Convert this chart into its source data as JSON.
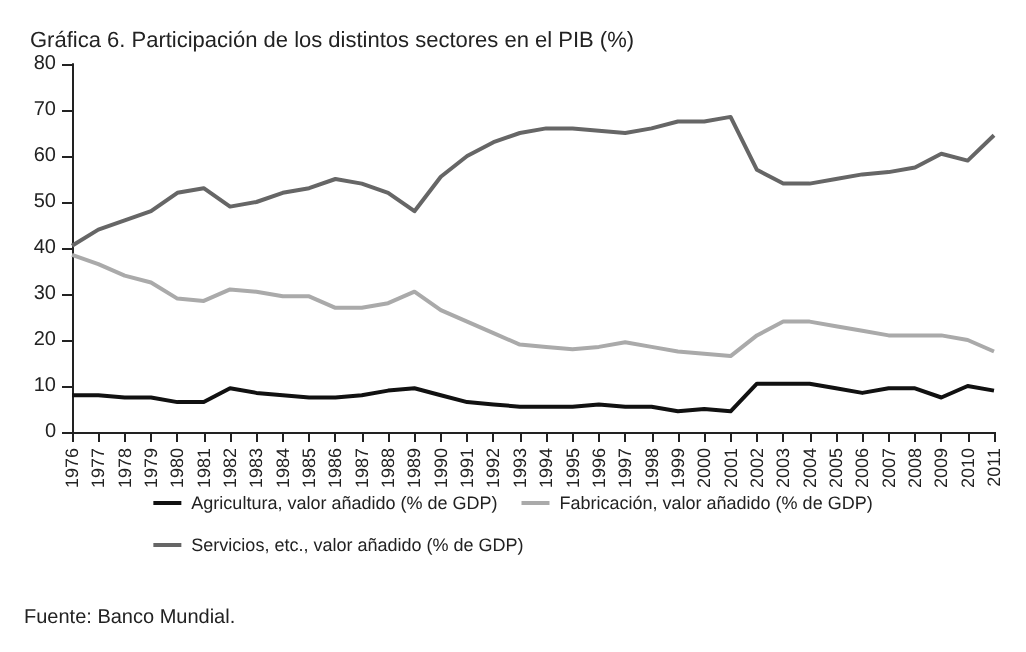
{
  "chart_data": {
    "type": "line",
    "title": "Gráfica 6. Participación de los distintos sectores en el PIB (%)",
    "categories": [
      "1976",
      "1977",
      "1978",
      "1979",
      "1980",
      "1981",
      "1982",
      "1983",
      "1984",
      "1985",
      "1986",
      "1987",
      "1988",
      "1989",
      "1990",
      "1991",
      "1992",
      "1993",
      "1994",
      "1995",
      "1996",
      "1997",
      "1998",
      "1999",
      "2000",
      "2001",
      "2002",
      "2003",
      "2004",
      "2005",
      "2006",
      "2007",
      "2008",
      "2009",
      "2010",
      "2011"
    ],
    "series": [
      {
        "name": "Agricultura, valor añadido (% de GDP)",
        "color": "#111111",
        "values": [
          8,
          8,
          7.5,
          7.5,
          6.5,
          6.5,
          9.5,
          8.5,
          8,
          7.5,
          7.5,
          8,
          9,
          9.5,
          8,
          6.5,
          6,
          5.5,
          5.5,
          5.5,
          6,
          5.5,
          5.5,
          4.5,
          5,
          4.5,
          10.5,
          10.5,
          10.5,
          9.5,
          8.5,
          9.5,
          9.5,
          7.5,
          10,
          9
        ]
      },
      {
        "name": "Fabricación, valor añadido (% de GDP)",
        "color": "#aaaaaa",
        "values": [
          38.5,
          36.5,
          34,
          32.5,
          29,
          28.5,
          31,
          30.5,
          29.5,
          29.5,
          27,
          27,
          28,
          30.5,
          26.5,
          24,
          21.5,
          19,
          18.5,
          18,
          18.5,
          19.5,
          18.5,
          17.5,
          17,
          16.5,
          21,
          24,
          24,
          23,
          22,
          21,
          21,
          21,
          20,
          17.5
        ]
      },
      {
        "name": "Servicios, etc., valor añadido (% de GDP)",
        "color": "#666666",
        "values": [
          40.5,
          44,
          46,
          48,
          52,
          53,
          49,
          50,
          52,
          53,
          55,
          54,
          52,
          48,
          55.5,
          60,
          63,
          65,
          66,
          66,
          65.5,
          65,
          66,
          67.5,
          67.5,
          68.5,
          57,
          54,
          54,
          55,
          56,
          56.5,
          57.5,
          60.5,
          59,
          64.5
        ]
      }
    ],
    "ylim": [
      0,
      80
    ],
    "yticks": [
      0,
      10,
      20,
      30,
      40,
      50,
      60,
      70,
      80
    ],
    "grid": false,
    "legend": "bottom",
    "marker": "none",
    "line_style": "solid",
    "annotations": [
      "Fuente: Banco Mundial."
    ]
  }
}
